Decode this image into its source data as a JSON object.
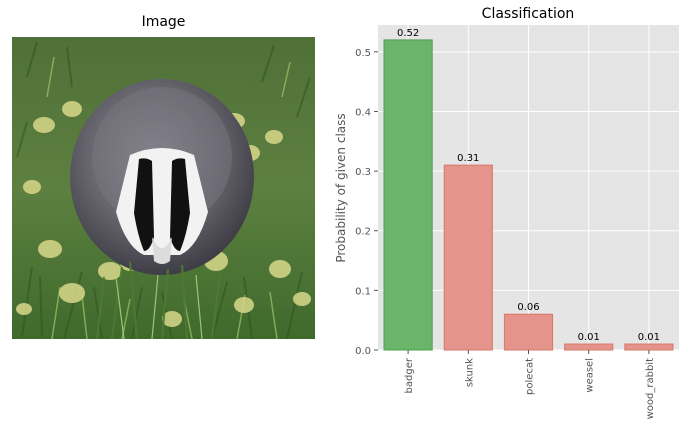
{
  "image_panel": {
    "title": "Image"
  },
  "chart_data": {
    "type": "bar",
    "title": "Classification",
    "xlabel": "",
    "ylabel": "Probability of given class",
    "categories": [
      "badger",
      "skunk",
      "polecat",
      "weasel",
      "wood_rabbit"
    ],
    "values": [
      0.52,
      0.31,
      0.06,
      0.01,
      0.01
    ],
    "value_labels": [
      "0.52",
      "0.31",
      "0.06",
      "0.01",
      "0.01"
    ],
    "ylim": [
      0,
      0.545
    ],
    "yticks": [
      0.0,
      0.1,
      0.2,
      0.3,
      0.4,
      0.5
    ],
    "ytick_labels": [
      "0.0",
      "0.1",
      "0.2",
      "0.3",
      "0.4",
      "0.5"
    ],
    "grid": true,
    "colors": {
      "highlight": "#6bb56b",
      "highlight_edge": "#4f9e4f",
      "other": "#e4948a",
      "other_edge": "#d9776a",
      "background": "#e5e5e5",
      "grid": "#ffffff"
    }
  }
}
